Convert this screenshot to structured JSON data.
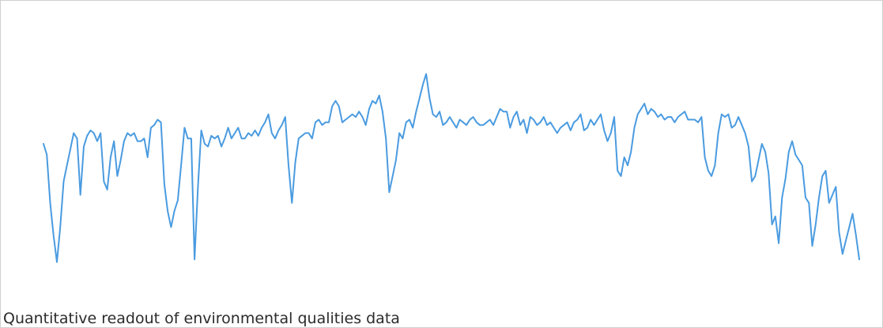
{
  "caption": "Quantitative readout of environmental qualities data",
  "chart_data": {
    "type": "line",
    "title": "",
    "xlabel": "",
    "ylabel": "",
    "ylim": [
      0,
      100
    ],
    "grid": false,
    "axes_visible": false,
    "legend": "none",
    "series": [
      {
        "color": "#4a9be0",
        "values": [
          60,
          56,
          38,
          26,
          16,
          29,
          46,
          52,
          58,
          64,
          62,
          41,
          59,
          63,
          65,
          64,
          61,
          64,
          46,
          43,
          55,
          61,
          48,
          54,
          61,
          64,
          63,
          64,
          61,
          61,
          62,
          55,
          66,
          67,
          69,
          68,
          45,
          35,
          29,
          35,
          39,
          52,
          66,
          62,
          62,
          17,
          44,
          65,
          60,
          59,
          63,
          62,
          63,
          59,
          62,
          66,
          62,
          64,
          66,
          62,
          62,
          64,
          63,
          65,
          63,
          66,
          68,
          71,
          64,
          62,
          65,
          67,
          70,
          52,
          38,
          53,
          62,
          63,
          64,
          64,
          62,
          68,
          69,
          67,
          68,
          68,
          74,
          76,
          74,
          68,
          69,
          70,
          71,
          70,
          72,
          70,
          67,
          73,
          76,
          75,
          78,
          72,
          62,
          42,
          48,
          54,
          64,
          62,
          68,
          69,
          66,
          72,
          77,
          82,
          86,
          77,
          71,
          70,
          72,
          67,
          68,
          70,
          68,
          66,
          69,
          68,
          67,
          69,
          70,
          68,
          67,
          67,
          68,
          69,
          67,
          70,
          73,
          72,
          72,
          66,
          70,
          72,
          67,
          69,
          64,
          70,
          69,
          67,
          68,
          70,
          67,
          68,
          66,
          64,
          66,
          67,
          68,
          65,
          68,
          69,
          71,
          65,
          66,
          69,
          67,
          69,
          71,
          65,
          61,
          64,
          70,
          50,
          48,
          55,
          52,
          57,
          66,
          71,
          73,
          75,
          71,
          73,
          72,
          70,
          71,
          69,
          70,
          70,
          68,
          70,
          71,
          72,
          69,
          69,
          69,
          68,
          70,
          55,
          50,
          48,
          52,
          64,
          71,
          70,
          71,
          66,
          67,
          70,
          67,
          64,
          59,
          46,
          48,
          54,
          60,
          57,
          49,
          30,
          33,
          23,
          40,
          47,
          57,
          61,
          56,
          54,
          52,
          40,
          38,
          22,
          30,
          40,
          48,
          50,
          38,
          41,
          44,
          27,
          19,
          24,
          29,
          34,
          26,
          17
        ]
      }
    ]
  }
}
